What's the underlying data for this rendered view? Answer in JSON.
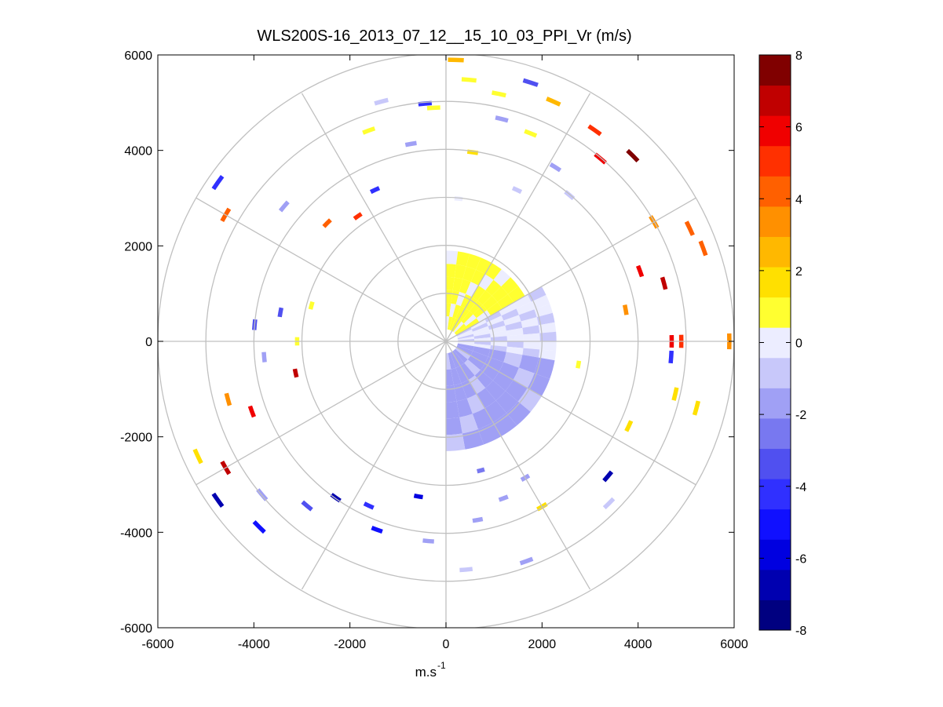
{
  "chart_data": {
    "type": "polar-ppi-heatmap",
    "title": "WLS200S-16_2013_07_12__15_10_03_PPI_Vr (m/s)",
    "xlabel_base": "m.s",
    "xlabel_exponent": "-1",
    "ylabel": "",
    "xlim": [
      -6000,
      6000
    ],
    "ylim": [
      -6000,
      6000
    ],
    "xticks": [
      -6000,
      -4000,
      -2000,
      0,
      2000,
      4000,
      6000
    ],
    "yticks": [
      -6000,
      -4000,
      -2000,
      0,
      2000,
      4000,
      6000
    ],
    "xtick_labels": [
      "-6000",
      "-4000",
      "-2000",
      "0",
      "2000",
      "4000",
      "6000"
    ],
    "ytick_labels": [
      "-6000",
      "-4000",
      "-2000",
      "0",
      "2000",
      "4000",
      "6000"
    ],
    "range_rings_m": [
      1000,
      2000,
      3000,
      4000,
      5000,
      6000
    ],
    "spoke_angles_deg": [
      0,
      30,
      60,
      90,
      120,
      150,
      180,
      210,
      240,
      270,
      300,
      330
    ],
    "colorbar": {
      "min": -8,
      "max": 8,
      "ticks": [
        -8,
        -6,
        -4,
        -2,
        0,
        2,
        4,
        6,
        8
      ],
      "tick_labels": [
        "-8",
        "-6",
        "-4",
        "-2",
        "0",
        "2",
        "4",
        "6",
        "8"
      ],
      "colors": [
        "#000080",
        "#0000b0",
        "#0000e0",
        "#1010ff",
        "#3030ff",
        "#5050f0",
        "#7878f0",
        "#a0a0f5",
        "#c8c8fa",
        "#ecedff",
        "#ffff30",
        "#ffe000",
        "#ffb800",
        "#ff9000",
        "#ff6000",
        "#ff3000",
        "#f00000",
        "#c00000",
        "#800000"
      ]
    },
    "data_description": "Radial velocity Vr (m/s) by azimuth and range; dense coverage within about 2000 m in the east and south-east sectors, sparse gates beyond.",
    "sectors": [
      {
        "name": "near-field north-east",
        "az_range_deg": [
          0,
          60
        ],
        "range_m": [
          250,
          1900
        ],
        "vr_ms": 0.7
      },
      {
        "name": "near-field east",
        "az_range_deg": [
          60,
          100
        ],
        "range_m": [
          250,
          2300
        ],
        "vr_ms": -0.4
      },
      {
        "name": "near-field south-east",
        "az_range_deg": [
          100,
          180
        ],
        "range_m": [
          250,
          2300
        ],
        "vr_ms": -1.5
      }
    ],
    "gates": [
      {
        "az": 2,
        "r": 5900,
        "vr": 2.2
      },
      {
        "az": 5,
        "r": 5500,
        "vr": 1.0
      },
      {
        "az": 12,
        "r": 5300,
        "vr": 0.5
      },
      {
        "az": 18,
        "r": 5700,
        "vr": -3.5
      },
      {
        "az": 24,
        "r": 5500,
        "vr": 2.5
      },
      {
        "az": 14,
        "r": 4800,
        "vr": -2.0
      },
      {
        "az": 8,
        "r": 4000,
        "vr": 1.5
      },
      {
        "az": 22,
        "r": 4700,
        "vr": 0.6
      },
      {
        "az": 35,
        "r": 5400,
        "vr": 5.0
      },
      {
        "az": 45,
        "r": 5500,
        "vr": 7.2
      },
      {
        "az": 40,
        "r": 5000,
        "vr": 5.5
      },
      {
        "az": 32,
        "r": 4300,
        "vr": -1.5
      },
      {
        "az": 40,
        "r": 4000,
        "vr": -0.8
      },
      {
        "az": 25,
        "r": 3500,
        "vr": -1.0
      },
      {
        "az": 5,
        "r": 3000,
        "vr": 0.3
      },
      {
        "az": 60,
        "r": 5000,
        "vr": 3.5
      },
      {
        "az": 65,
        "r": 5600,
        "vr": 4.2
      },
      {
        "az": 70,
        "r": 5700,
        "vr": 4.0
      },
      {
        "az": 75,
        "r": 4700,
        "vr": 6.5
      },
      {
        "az": 70,
        "r": 4300,
        "vr": 5.5
      },
      {
        "az": 80,
        "r": 3800,
        "vr": 3.0
      },
      {
        "az": 90,
        "r": 4700,
        "vr": 6.0
      },
      {
        "az": 90,
        "r": 4900,
        "vr": 5.0
      },
      {
        "az": 90,
        "r": 5900,
        "vr": 3.0
      },
      {
        "az": 94,
        "r": 4700,
        "vr": -4.5
      },
      {
        "az": 100,
        "r": 2800,
        "vr": 0.5
      },
      {
        "az": 103,
        "r": 4900,
        "vr": 2.0
      },
      {
        "az": 105,
        "r": 5400,
        "vr": 1.5
      },
      {
        "az": 115,
        "r": 4200,
        "vr": 1.8
      },
      {
        "az": 130,
        "r": 4400,
        "vr": -6.5
      },
      {
        "az": 135,
        "r": 4800,
        "vr": -1.2
      },
      {
        "az": 150,
        "r": 4000,
        "vr": 1.5
      },
      {
        "az": 150,
        "r": 3300,
        "vr": -2.0
      },
      {
        "az": 160,
        "r": 4900,
        "vr": -2.0
      },
      {
        "az": 160,
        "r": 3500,
        "vr": -1.5
      },
      {
        "az": 165,
        "r": 2800,
        "vr": -2.2
      },
      {
        "az": 170,
        "r": 3800,
        "vr": -1.5
      },
      {
        "az": 175,
        "r": 4800,
        "vr": -1.0
      },
      {
        "az": 185,
        "r": 4200,
        "vr": -1.8
      },
      {
        "az": 190,
        "r": 3300,
        "vr": -6.0
      },
      {
        "az": 200,
        "r": 4200,
        "vr": -5.0
      },
      {
        "az": 205,
        "r": 3800,
        "vr": -4.0
      },
      {
        "az": 215,
        "r": 4000,
        "vr": -6.5
      },
      {
        "az": 220,
        "r": 4500,
        "vr": -3.5
      },
      {
        "az": 225,
        "r": 5500,
        "vr": -5.0
      },
      {
        "az": 230,
        "r": 5000,
        "vr": -2.0
      },
      {
        "az": 235,
        "r": 5800,
        "vr": -7.0
      },
      {
        "az": 240,
        "r": 5300,
        "vr": 6.5
      },
      {
        "az": 245,
        "r": 5700,
        "vr": 1.5
      },
      {
        "az": 250,
        "r": 4300,
        "vr": 6.0
      },
      {
        "az": 255,
        "r": 4700,
        "vr": 3.0
      },
      {
        "az": 258,
        "r": 3200,
        "vr": 7.0
      },
      {
        "az": 265,
        "r": 3800,
        "vr": -2.0
      },
      {
        "az": 270,
        "r": 3100,
        "vr": 1.2
      },
      {
        "az": 275,
        "r": 4000,
        "vr": -3.5
      },
      {
        "az": 280,
        "r": 3500,
        "vr": -3.0
      },
      {
        "az": 285,
        "r": 2900,
        "vr": 0.6
      },
      {
        "az": 300,
        "r": 5300,
        "vr": 4.5
      },
      {
        "az": 305,
        "r": 5800,
        "vr": -4.0
      },
      {
        "az": 310,
        "r": 4400,
        "vr": -2.0
      },
      {
        "az": 315,
        "r": 3500,
        "vr": 4.5
      },
      {
        "az": 325,
        "r": 3200,
        "vr": 5.0
      },
      {
        "az": 335,
        "r": 3500,
        "vr": -4.0
      },
      {
        "az": 340,
        "r": 4700,
        "vr": 0.6
      },
      {
        "az": 345,
        "r": 5200,
        "vr": -1.0
      },
      {
        "az": 350,
        "r": 4200,
        "vr": -1.8
      },
      {
        "az": 355,
        "r": 5000,
        "vr": -4.5
      },
      {
        "az": 357,
        "r": 4900,
        "vr": 0.8
      }
    ]
  }
}
